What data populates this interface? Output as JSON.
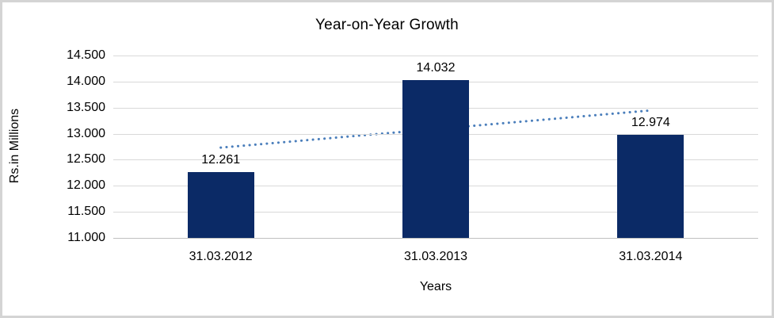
{
  "chart_data": {
    "type": "bar",
    "title": "Year-on-Year Growth",
    "xlabel": "Years",
    "ylabel": "Rs.in Millions",
    "categories": [
      "31.03.2012",
      "31.03.2013",
      "31.03.2014"
    ],
    "series": [
      {
        "name": "Year-on-Year Growth",
        "values": [
          12.261,
          14.032,
          12.974
        ],
        "data_labels": [
          "12.261",
          "14.032",
          "12.974"
        ]
      }
    ],
    "ylim": [
      11.0,
      14.5
    ],
    "ytick_step": 0.5,
    "ytick_labels_top_to_bottom": [
      "14.500",
      "14.000",
      "13.500",
      "13.000",
      "12.500",
      "12.000",
      "11.500",
      "11.000"
    ],
    "grid": true,
    "legend": "none",
    "trendline": {
      "type": "linear",
      "style": "dotted",
      "start_value": 12.733,
      "end_value": 13.446
    },
    "colors": {
      "bar": "#0b2a66",
      "trendline": "#4a7ebb",
      "gridline": "#d9d9d9",
      "axis_line": "#c0c0c0",
      "text": "#000000",
      "frame_border": "#d4d4d4",
      "background": "#ffffff"
    }
  }
}
